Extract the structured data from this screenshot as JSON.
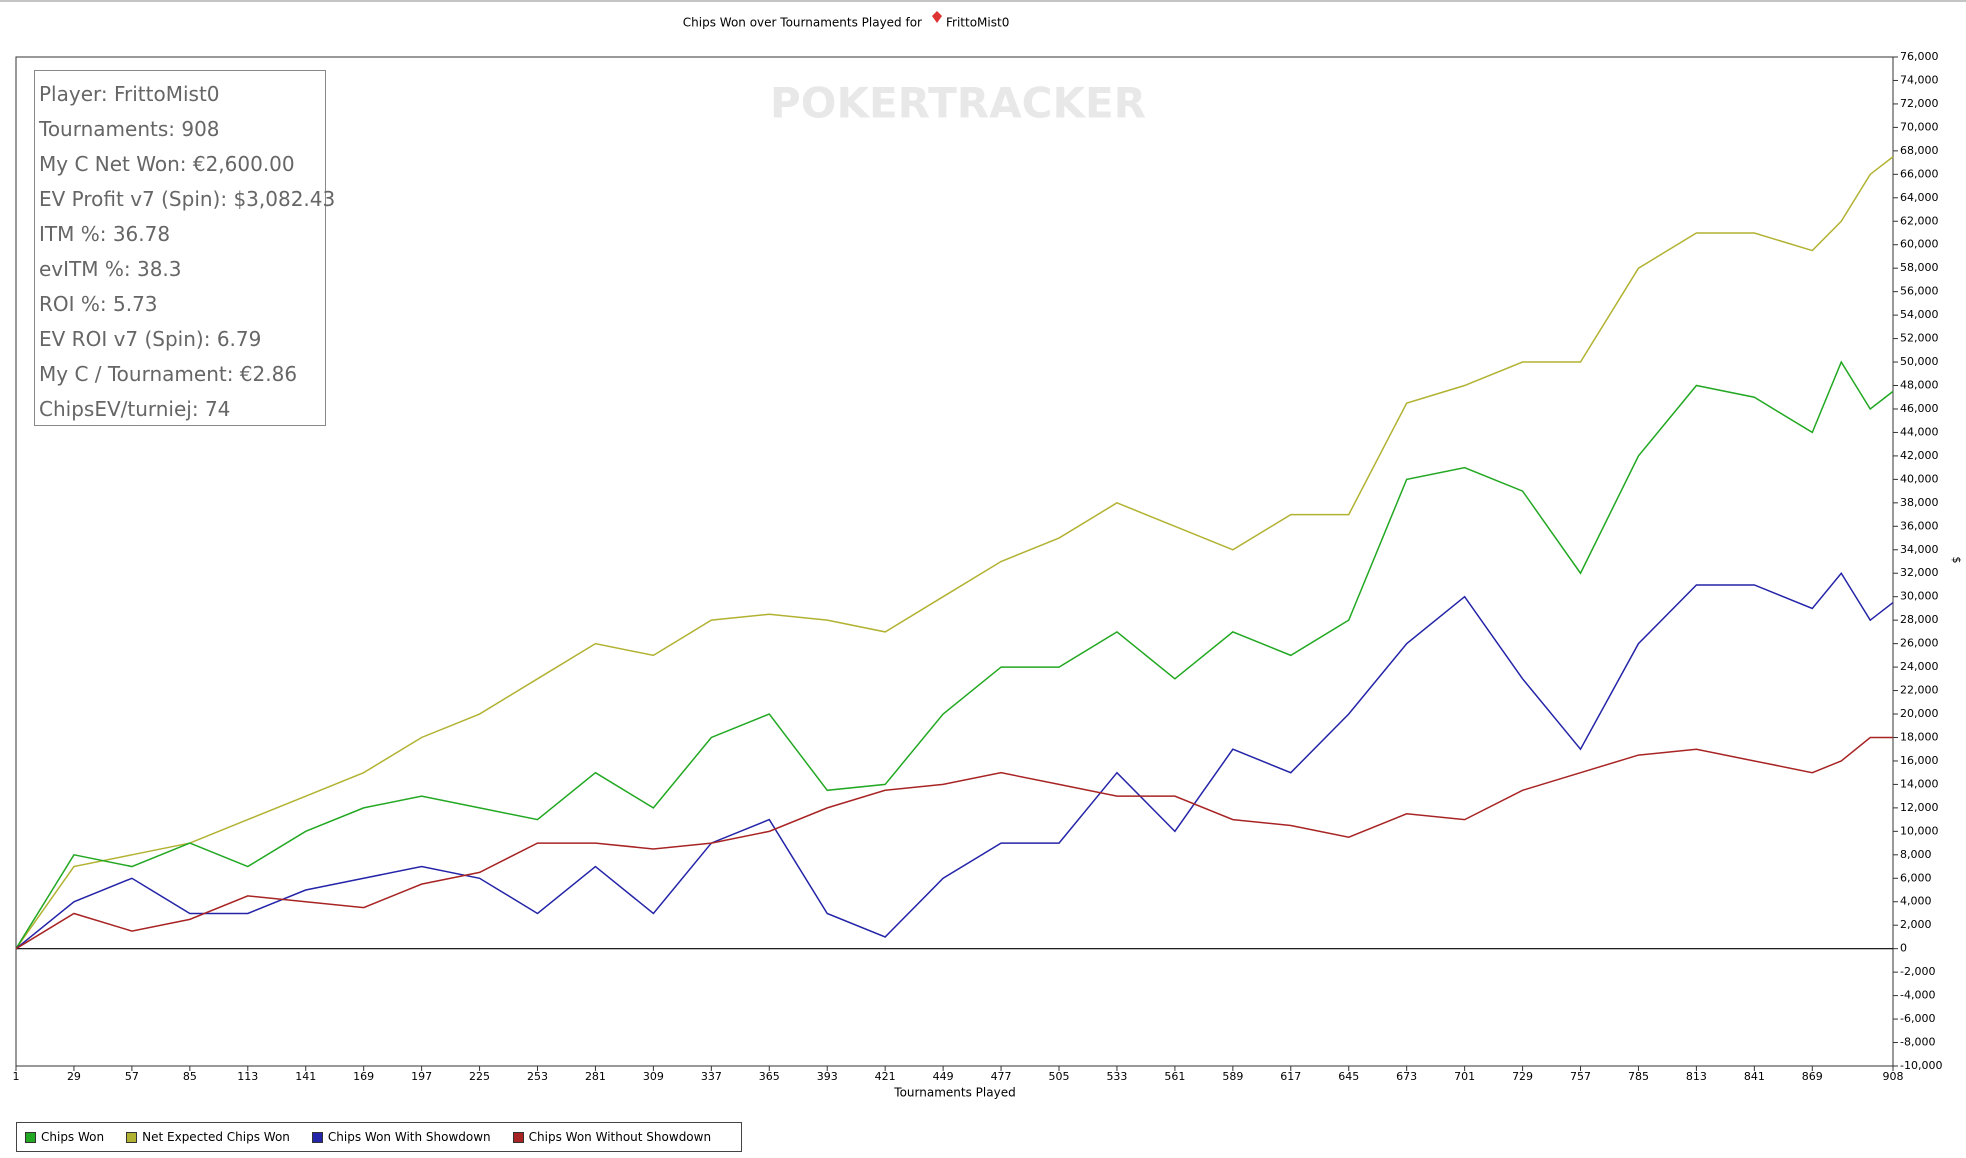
{
  "chart_data": {
    "type": "line",
    "title": "Chips Won over Tournaments Played for",
    "player": "FrittoMist0",
    "watermark": "POKERTRACKER",
    "x_label": "Tournaments Played",
    "y_label": "$",
    "stats": [
      "Player: FrittoMist0",
      "Tournaments: 908",
      "My C Net Won: €2,600.00",
      "EV Profit v7 (Spin): $3,082.43",
      "ITM %: 36.78",
      "evITM %: 38.3",
      "ROI %: 5.73",
      "EV ROI v7 (Spin): 6.79",
      "My C / Tournament: €2.86",
      "ChipsEV/turniej: 74"
    ],
    "x": [
      1,
      29,
      57,
      85,
      113,
      141,
      169,
      197,
      225,
      253,
      281,
      309,
      337,
      365,
      393,
      421,
      449,
      477,
      505,
      533,
      561,
      589,
      617,
      645,
      673,
      701,
      729,
      757,
      785,
      813,
      841,
      869,
      883,
      897,
      908
    ],
    "xlim": [
      1,
      908
    ],
    "xticks": [
      1,
      29,
      57,
      85,
      113,
      141,
      169,
      197,
      225,
      253,
      281,
      309,
      337,
      365,
      393,
      421,
      449,
      477,
      505,
      533,
      561,
      589,
      617,
      645,
      673,
      701,
      729,
      757,
      785,
      813,
      841,
      869,
      908
    ],
    "ylim": [
      -10000,
      76000
    ],
    "yticks": [
      {
        "value": -10000,
        "label": "-10,000"
      },
      {
        "value": -8000,
        "label": "-8,000"
      },
      {
        "value": -6000,
        "label": "-6,000"
      },
      {
        "value": -4000,
        "label": "-4,000"
      },
      {
        "value": -2000,
        "label": "-2,000"
      },
      0,
      {
        "value": 2000,
        "label": "2,000"
      },
      {
        "value": 4000,
        "label": "4,000"
      },
      {
        "value": 6000,
        "label": "6,000"
      },
      {
        "value": 8000,
        "label": "8,000"
      },
      {
        "value": 10000,
        "label": "10,000"
      },
      {
        "value": 12000,
        "label": "12,000"
      },
      {
        "value": 14000,
        "label": "14,000"
      },
      {
        "value": 16000,
        "label": "16,000"
      },
      {
        "value": 18000,
        "label": "18,000"
      },
      {
        "value": 20000,
        "label": "20,000"
      },
      {
        "value": 22000,
        "label": "22,000"
      },
      {
        "value": 24000,
        "label": "24,000"
      },
      {
        "value": 26000,
        "label": "26,000"
      },
      {
        "value": 28000,
        "label": "28,000"
      },
      {
        "value": 30000,
        "label": "30,000"
      },
      {
        "value": 32000,
        "label": "32,000"
      },
      {
        "value": 34000,
        "label": "34,000"
      },
      {
        "value": 36000,
        "label": "36,000"
      },
      {
        "value": 38000,
        "label": "38,000"
      },
      {
        "value": 40000,
        "label": "40,000"
      },
      {
        "value": 42000,
        "label": "42,000"
      },
      {
        "value": 44000,
        "label": "44,000"
      },
      {
        "value": 46000,
        "label": "46,000"
      },
      {
        "value": 48000,
        "label": "48,000"
      },
      {
        "value": 50000,
        "label": "50,000"
      },
      {
        "value": 52000,
        "label": "52,000"
      },
      {
        "value": 54000,
        "label": "54,000"
      },
      {
        "value": 56000,
        "label": "56,000"
      },
      {
        "value": 58000,
        "label": "58,000"
      },
      {
        "value": 60000,
        "label": "60,000"
      },
      {
        "value": 62000,
        "label": "62,000"
      },
      {
        "value": 64000,
        "label": "64,000"
      },
      {
        "value": 66000,
        "label": "66,000"
      },
      {
        "value": 68000,
        "label": "68,000"
      },
      {
        "value": 70000,
        "label": "70,000"
      },
      {
        "value": 72000,
        "label": "72,000"
      },
      {
        "value": 74000,
        "label": "74,000"
      },
      {
        "value": 76000,
        "label": "76,000"
      }
    ],
    "series": [
      {
        "name": "Chips Won",
        "color": "#22a822",
        "values": [
          0,
          8000,
          7000,
          9000,
          7000,
          10000,
          12000,
          13000,
          12000,
          11000,
          15000,
          12000,
          18000,
          20000,
          13500,
          14000,
          20000,
          24000,
          24000,
          27000,
          23000,
          27000,
          25000,
          28000,
          40000,
          41000,
          39000,
          32000,
          42000,
          48000,
          47000,
          44000,
          50000,
          46000,
          47500
        ]
      },
      {
        "name": "Net Expected Chips Won",
        "color": "#b2b232",
        "values": [
          0,
          7000,
          8000,
          9000,
          11000,
          13000,
          15000,
          18000,
          20000,
          23000,
          26000,
          25000,
          28000,
          28500,
          28000,
          27000,
          30000,
          33000,
          35000,
          38000,
          36000,
          34000,
          37000,
          37000,
          46500,
          48000,
          50000,
          50000,
          58000,
          61000,
          61000,
          59500,
          62000,
          66000,
          67500
        ]
      },
      {
        "name": "Chips Won With Showdown",
        "color": "#2424a8",
        "values": [
          0,
          4000,
          6000,
          3000,
          3000,
          5000,
          6000,
          7000,
          6000,
          3000,
          7000,
          3000,
          9000,
          11000,
          3000,
          1000,
          6000,
          9000,
          9000,
          15000,
          10000,
          17000,
          15000,
          20000,
          26000,
          30000,
          23000,
          17000,
          26000,
          31000,
          31000,
          29000,
          32000,
          28000,
          29500
        ]
      },
      {
        "name": "Chips Won Without Showdown",
        "color": "#a82424",
        "values": [
          0,
          3000,
          1500,
          2500,
          4500,
          4000,
          3500,
          5500,
          6500,
          9000,
          9000,
          8500,
          9000,
          10000,
          12000,
          13500,
          14000,
          15000,
          14000,
          13000,
          13000,
          11000,
          10500,
          9500,
          11500,
          11000,
          13500,
          15000,
          16500,
          17000,
          16000,
          15000,
          16000,
          18000,
          18000
        ]
      }
    ]
  }
}
